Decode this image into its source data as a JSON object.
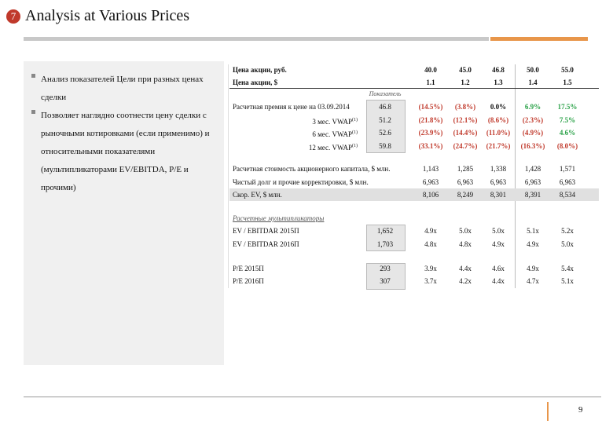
{
  "header": {
    "number": "7",
    "title": "Analysis at Various Prices"
  },
  "bullets": [
    "Анализ показателей Цели при разных ценах сделки",
    "Позволяет наглядно соотнести цену сделки с рыночными котировками (если применимо) и относительными показателями (мультипликаторами EV/EBITDA, P/E и прочими)"
  ],
  "table": {
    "price_rows": [
      {
        "label": "Цена акции, руб.",
        "cells": [
          "40.0",
          "45.0",
          "46.8",
          "50.0",
          "55.0"
        ]
      },
      {
        "label": "Цена акции, $",
        "cells": [
          "1.1",
          "1.2",
          "1.3",
          "1.4",
          "1.5"
        ]
      }
    ],
    "indicator_label": "Показатель",
    "premium_title": "Расчетная премия к цене на 03.09.2014",
    "premium_rows": [
      {
        "label": "",
        "base": "46.8",
        "cells": [
          "(14.5%)",
          "(3.8%)",
          "0.0%",
          "6.9%",
          "17.5%"
        ]
      },
      {
        "label": "3 мес. VWAP",
        "note": "(1)",
        "base": "51.2",
        "cells": [
          "(21.8%)",
          "(12.1%)",
          "(8.6%)",
          "(2.3%)",
          "7.5%"
        ]
      },
      {
        "label": "6 мес. VWAP",
        "note": "(1)",
        "base": "52.6",
        "cells": [
          "(23.9%)",
          "(14.4%)",
          "(11.0%)",
          "(4.9%)",
          "4.6%"
        ]
      },
      {
        "label": "12 мес. VWAP",
        "note": "(1)",
        "base": "59.8",
        "cells": [
          "(33.1%)",
          "(24.7%)",
          "(21.7%)",
          "(16.3%)",
          "(8.0%)"
        ]
      }
    ],
    "value_rows": [
      {
        "label": "Расчетная стоимость акционерного капитала, $ млн.",
        "cells": [
          "1,143",
          "1,285",
          "1,338",
          "1,428",
          "1,571"
        ]
      },
      {
        "label": "Чистый долг и прочие корректировки, $ млн.",
        "cells": [
          "6,963",
          "6,963",
          "6,963",
          "6,963",
          "6,963"
        ]
      },
      {
        "label": "Скор. EV, $ млн.",
        "cells": [
          "8,106",
          "8,249",
          "8,301",
          "8,391",
          "8,534"
        ]
      }
    ],
    "multiples_title": "Расчетные мультипликаторы",
    "multiple_rows": [
      {
        "label": "EV / EBITDAR 2015П",
        "base": "1,652",
        "cells": [
          "4.9x",
          "5.0x",
          "5.0x",
          "5.1x",
          "5.2x"
        ]
      },
      {
        "label": "EV / EBITDAR 2016П",
        "base": "1,703",
        "cells": [
          "4.8x",
          "4.8x",
          "4.9x",
          "4.9x",
          "5.0x"
        ]
      },
      {
        "label": "P/E 2015П",
        "base": "293",
        "cells": [
          "3.9x",
          "4.4x",
          "4.6x",
          "4.9x",
          "5.4x"
        ]
      },
      {
        "label": "P/E 2016П",
        "base": "307",
        "cells": [
          "3.7x",
          "4.2x",
          "4.4x",
          "4.7x",
          "5.1x"
        ]
      }
    ]
  },
  "footer": {
    "page": "9"
  }
}
